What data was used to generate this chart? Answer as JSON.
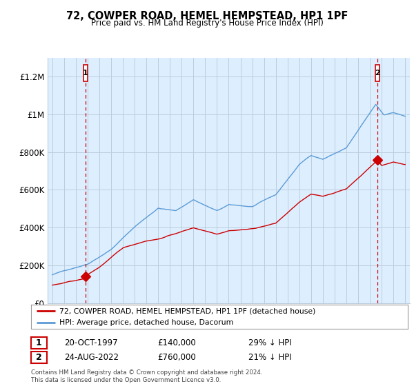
{
  "title": "72, COWPER ROAD, HEMEL HEMPSTEAD, HP1 1PF",
  "subtitle": "Price paid vs. HM Land Registry's House Price Index (HPI)",
  "ylim": [
    0,
    1300000
  ],
  "yticks": [
    0,
    200000,
    400000,
    600000,
    800000,
    1000000,
    1200000
  ],
  "ytick_labels": [
    "£0",
    "£200K",
    "£400K",
    "£600K",
    "£800K",
    "£1M",
    "£1.2M"
  ],
  "hpi_color": "#5b9bd5",
  "price_color": "#cc0000",
  "plot_bg_color": "#ddeeff",
  "marker1_year": 1997.8,
  "marker1_price": 140000,
  "marker2_year": 2022.65,
  "marker2_price": 760000,
  "legend_line1": "72, COWPER ROAD, HEMEL HEMPSTEAD, HP1 1PF (detached house)",
  "legend_line2": "HPI: Average price, detached house, Dacorum",
  "table_row1": [
    "1",
    "20-OCT-1997",
    "£140,000",
    "29% ↓ HPI"
  ],
  "table_row2": [
    "2",
    "24-AUG-2022",
    "£760,000",
    "21% ↓ HPI"
  ],
  "footnote": "Contains HM Land Registry data © Crown copyright and database right 2024.\nThis data is licensed under the Open Government Licence v3.0.",
  "background_color": "#ffffff",
  "grid_color": "#bbccdd"
}
